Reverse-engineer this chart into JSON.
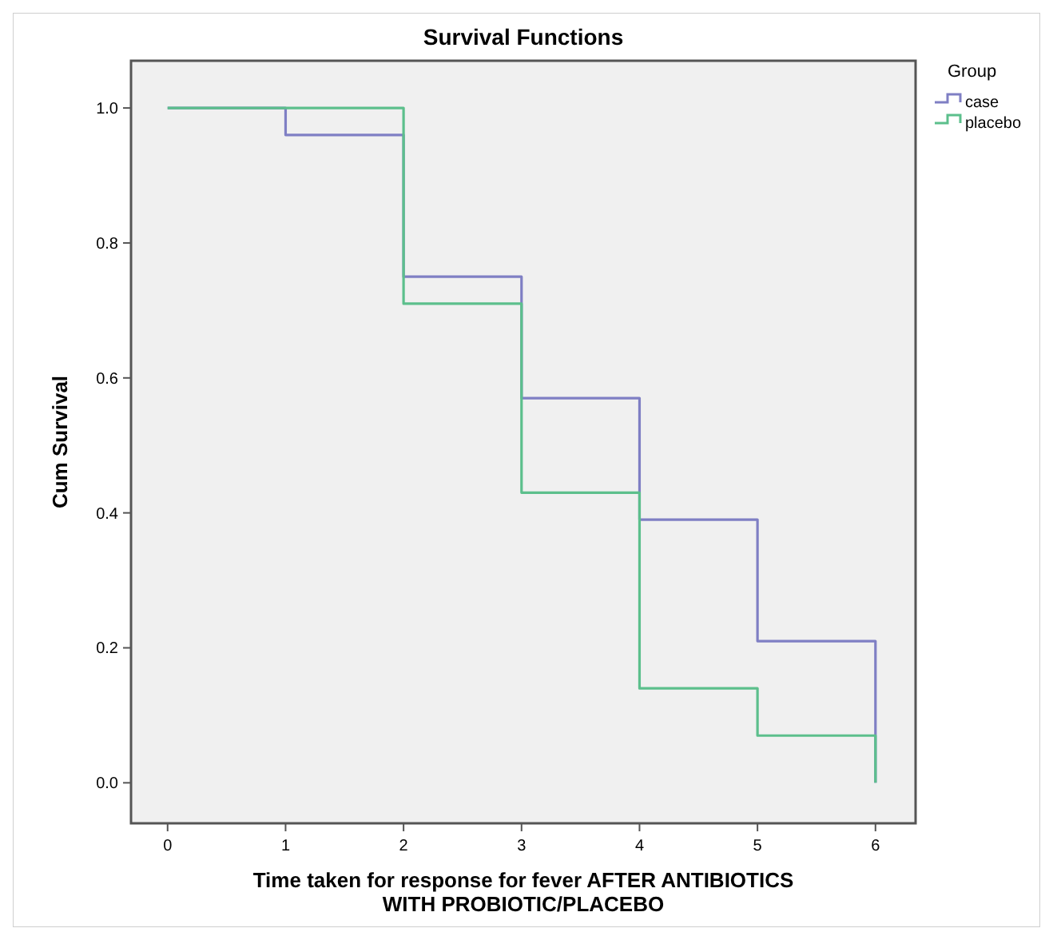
{
  "chart_data": {
    "type": "step",
    "title": "Survival Functions",
    "xlabel": "Time taken for response for fever AFTER ANTIBIOTICS\nWITH PROBIOTIC/PLACEBO",
    "ylabel": "Cum Survival",
    "legend_title": "Group",
    "legend": "top right",
    "grid": false,
    "x": [
      0,
      1,
      2,
      3,
      4,
      5,
      6
    ],
    "series": [
      {
        "name": "case",
        "color": "#7f7fc4",
        "values": [
          1,
          0.96,
          0.75,
          0.57,
          0.39,
          0.21,
          0
        ]
      },
      {
        "name": "placebo",
        "color": "#5cbf8c",
        "values": [
          1,
          1,
          0.71,
          0.43,
          0.14,
          0.07,
          0
        ]
      }
    ],
    "xlim": [
      -0.31,
      6.34
    ],
    "xticks": [
      0,
      1,
      2,
      3,
      4,
      5,
      6
    ],
    "ylim": [
      -0.06,
      1.07
    ],
    "yticks": [
      {
        "value": 0,
        "label": "0.0"
      },
      {
        "value": 0.2,
        "label": "0.2"
      },
      {
        "value": 0.4,
        "label": "0.4"
      },
      {
        "value": 0.6,
        "label": "0.6"
      },
      {
        "value": 0.8,
        "label": "0.8"
      },
      {
        "value": 1,
        "label": "1.0"
      }
    ]
  }
}
